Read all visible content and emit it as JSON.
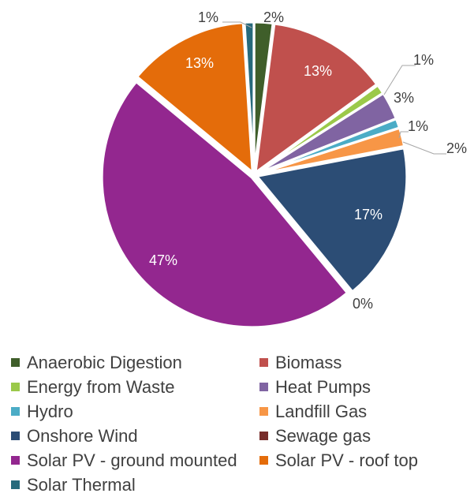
{
  "chart_data": {
    "type": "pie",
    "categories": [
      "Anaerobic Digestion",
      "Biomass",
      "Energy from Waste",
      "Heat Pumps",
      "Hydro",
      "Landfill Gas",
      "Onshore Wind",
      "Sewage gas",
      "Solar PV - ground mounted",
      "Solar PV - roof top",
      "Solar Thermal"
    ],
    "values": [
      2,
      13,
      1,
      3,
      1,
      2,
      17,
      0,
      47,
      13,
      1
    ],
    "labels": [
      "2%",
      "13%",
      "1%",
      "3%",
      "1%",
      "2%",
      "17%",
      "0%",
      "47%",
      "13%",
      "1%"
    ],
    "colors": [
      "#3f5e2a",
      "#c0504d",
      "#9bc94a",
      "#8064a2",
      "#4bacc6",
      "#f79646",
      "#2c4d75",
      "#772c2a",
      "#93278f",
      "#e46c0a",
      "#276a7c"
    ],
    "legend_position": "bottom",
    "start_angle_deg": 0,
    "direction": "clockwise"
  }
}
